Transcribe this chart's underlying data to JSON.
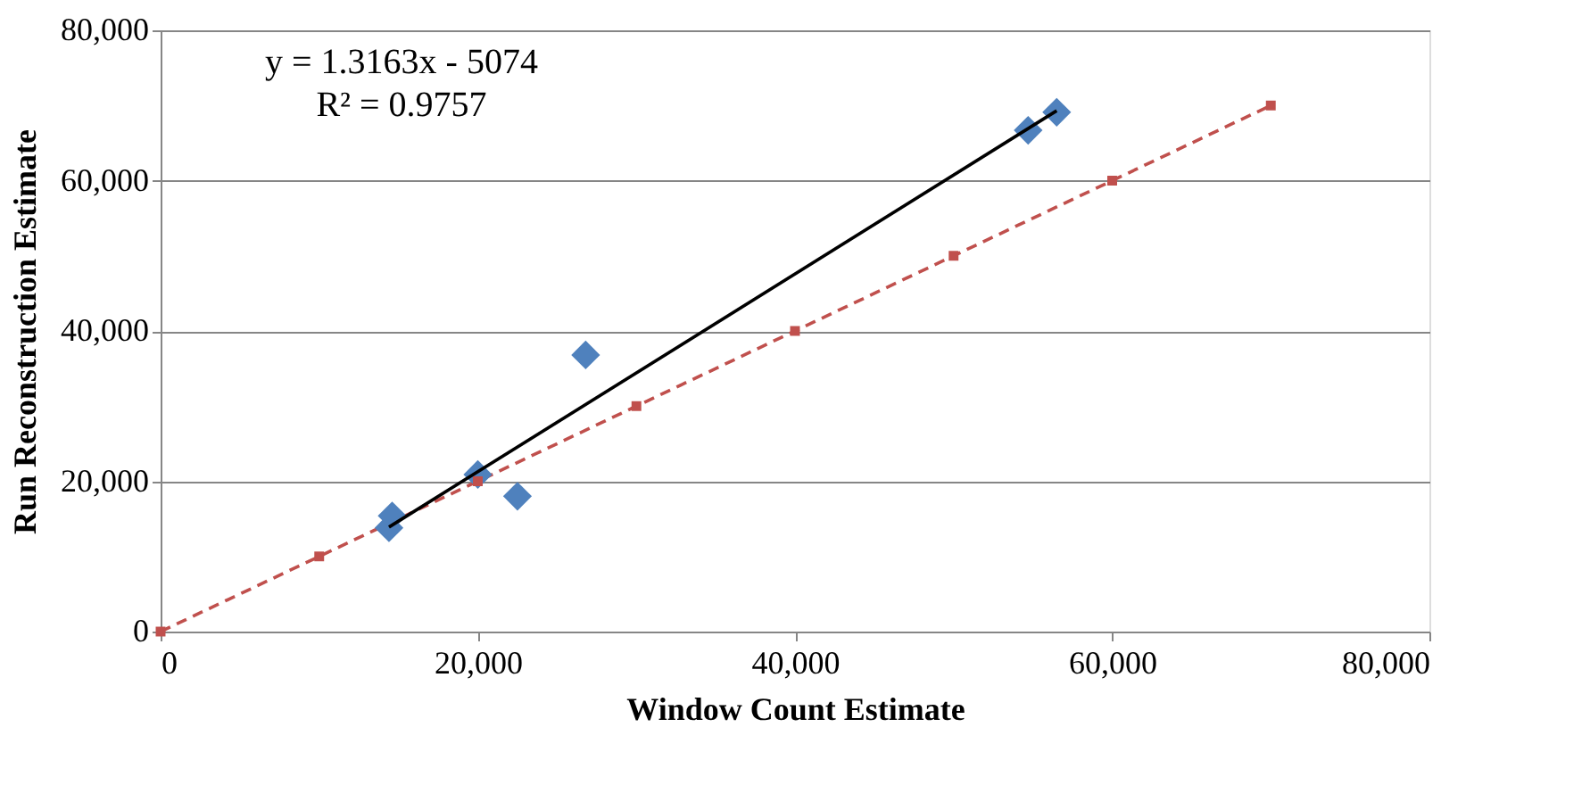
{
  "chart_data": {
    "type": "scatter",
    "xlabel": "Window Count Estimate",
    "ylabel": "Run Reconstruction Estimate",
    "xlim": [
      0,
      80000
    ],
    "ylim": [
      0,
      80000
    ],
    "xticks": [
      {
        "value": 0,
        "label": "0"
      },
      {
        "value": 20000,
        "label": "20,000"
      },
      {
        "value": 40000,
        "label": "40,000"
      },
      {
        "value": 60000,
        "label": "60,000"
      },
      {
        "value": 80000,
        "label": "80,000"
      }
    ],
    "yticks": [
      {
        "value": 0,
        "label": "0"
      },
      {
        "value": 20000,
        "label": "20,000"
      },
      {
        "value": 40000,
        "label": "40,000"
      },
      {
        "value": 60000,
        "label": "60,000"
      },
      {
        "value": 80000,
        "label": "80,000"
      }
    ],
    "grid": "y",
    "series": [
      {
        "type": "line",
        "color": "#c0504d",
        "marker": "square",
        "line_style": "dashed",
        "x": [
          0,
          10000,
          20000,
          30000,
          40000,
          50000,
          60000,
          70000
        ],
        "values": [
          0,
          10000,
          20000,
          30000,
          40000,
          50000,
          60000,
          70000
        ]
      },
      {
        "color": "#4f81bd",
        "marker": "diamond",
        "x": [
          14400,
          14600,
          20000,
          22500,
          26800,
          54700,
          56500
        ],
        "values": [
          13800,
          15400,
          20900,
          18000,
          36800,
          66700,
          69100
        ]
      },
      {
        "type": "line",
        "color": "#000000",
        "marker": "none",
        "line_style": "solid",
        "x": [
          14400,
          56500
        ],
        "values": [
          13900,
          69300
        ]
      }
    ],
    "annotations": [
      "y = 1.3163x - 5074",
      "R² = 0.9757"
    ]
  }
}
